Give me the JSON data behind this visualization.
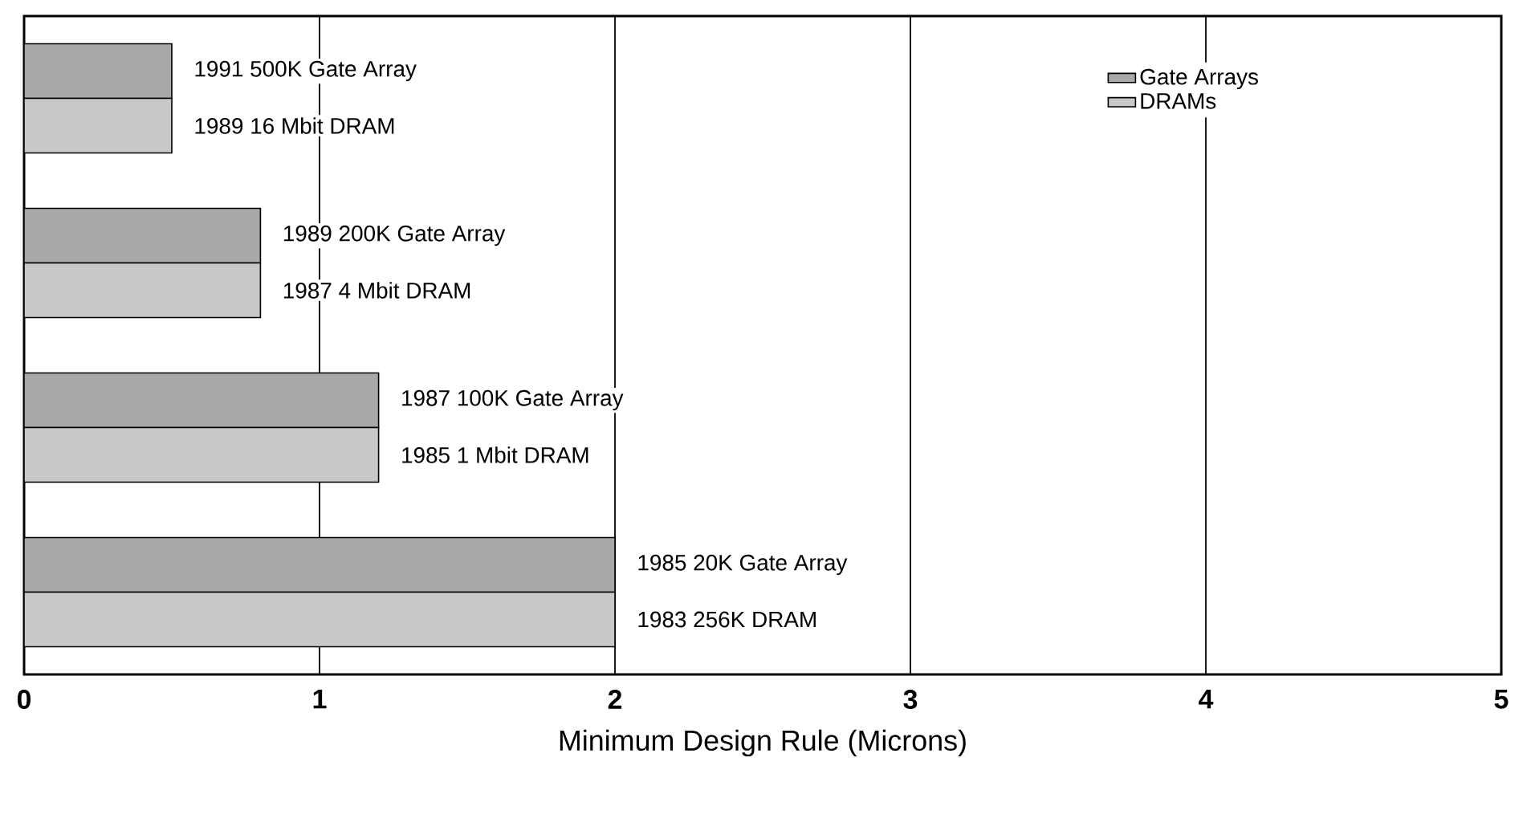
{
  "chart_data": {
    "type": "bar",
    "orientation": "horizontal",
    "xlabel": "Minimum Design Rule (Microns)",
    "categories": [
      null,
      null,
      null,
      null
    ],
    "series": [
      {
        "name": "Gate Arrays",
        "color": "#a8a8a8",
        "values": [
          0.5,
          0.8,
          1.2,
          2
        ]
      },
      {
        "name": "DRAMs",
        "color": "#c8c8c8",
        "values": [
          0.5,
          0.8,
          1.2,
          2
        ]
      }
    ],
    "annotations": [
      {
        "text": "1991  500K Gate Array",
        "x": 0.5
      },
      {
        "text": "1989  16 Mbit DRAM",
        "x": 0.5
      },
      {
        "text": "1989  200K Gate Array",
        "x": 0.8
      },
      {
        "text": "1987  4 Mbit DRAM",
        "x": 0.8
      },
      {
        "text": "1987  100K Gate Array",
        "x": 1.2
      },
      {
        "text": "1985  1 Mbit DRAM",
        "x": 1.2
      },
      {
        "text": "1985  20K Gate Array",
        "x": 2
      },
      {
        "text": "1983  256K DRAM",
        "x": 2
      }
    ],
    "xlim": [
      0,
      5
    ],
    "xticks": [
      0,
      1,
      2,
      3,
      4,
      5
    ],
    "grid": "x",
    "legend": "top right"
  }
}
